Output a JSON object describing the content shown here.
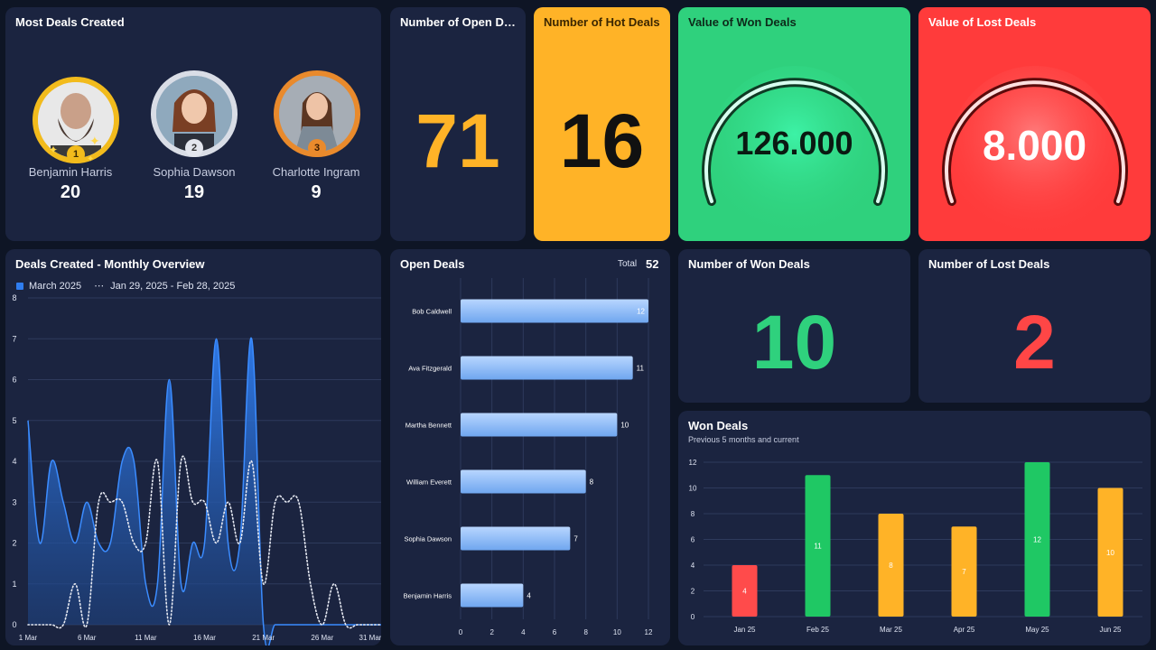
{
  "most_deals": {
    "title": "Most Deals Created",
    "people": [
      {
        "rank": "1",
        "name": "Benjamin Harris",
        "count": "20",
        "ring": "#f2bb1c"
      },
      {
        "rank": "2",
        "name": "Sophia Dawson",
        "count": "19",
        "ring": "#d9dde6"
      },
      {
        "rank": "3",
        "name": "Charlotte Ingram",
        "count": "9",
        "ring": "#e98a2c"
      }
    ]
  },
  "open_deals_kpi": {
    "title": "Number of Open Deals",
    "value": "71",
    "color": "#ffb327"
  },
  "hot_deals_kpi": {
    "title": "Number of Hot Deals",
    "value": "16",
    "bg": "#ffb327"
  },
  "won_value_kpi": {
    "title": "Value of Won Deals",
    "value": "126.000",
    "bg": "#2fd17d"
  },
  "lost_value_kpi": {
    "title": "Value of Lost Deals",
    "value": "8.000",
    "bg": "#ff3b3b"
  },
  "won_count_kpi": {
    "title": "Number of Won Deals",
    "value": "10",
    "color": "#2fd17d"
  },
  "lost_count_kpi": {
    "title": "Number of Lost Deals",
    "value": "2",
    "color": "#ff4646"
  },
  "monthly": {
    "title": "Deals Created - Monthly Overview",
    "legend_current": "March 2025",
    "legend_previous": "Jan 29, 2025 - Feb 28, 2025"
  },
  "open_deals_chart": {
    "title": "Open Deals",
    "total_label": "Total",
    "total_value": "52"
  },
  "won_deals_chart": {
    "title": "Won Deals",
    "subtitle": "Previous 5 months and current"
  },
  "chart_data": [
    {
      "type": "area",
      "title": "Deals Created - Monthly Overview",
      "x_ticks": [
        "1 Mar",
        "6 Mar",
        "11 Mar",
        "16 Mar",
        "21 Mar",
        "26 Mar",
        "31 Mar"
      ],
      "ylim": [
        0,
        8
      ],
      "y_ticks": [
        0,
        1,
        2,
        3,
        4,
        5,
        6,
        7,
        8
      ],
      "grid": true,
      "legend": "top-left",
      "series": [
        {
          "name": "March 2025",
          "style": "area",
          "color": "#2f7df0",
          "values": [
            5,
            2,
            4,
            3,
            2,
            3,
            2,
            2,
            4,
            4,
            1,
            1,
            6,
            1,
            2,
            2,
            7,
            2,
            2,
            7,
            0,
            0,
            0,
            0,
            0,
            0,
            0,
            0,
            0,
            0,
            0
          ]
        },
        {
          "name": "Jan 29, 2025 - Feb 28, 2025",
          "style": "dotted",
          "color": "#e6e9f2",
          "values": [
            0,
            0,
            0,
            0,
            1,
            0,
            3,
            3,
            3,
            2,
            2,
            4,
            0,
            4,
            3,
            3,
            2,
            3,
            2,
            4,
            1,
            3,
            3,
            3,
            1,
            0,
            1,
            0,
            0,
            0,
            0
          ]
        }
      ]
    },
    {
      "type": "bar",
      "orientation": "horizontal",
      "title": "Open Deals",
      "categories": [
        "Bob Caldwell",
        "Ava Fitzgerald",
        "Martha Bennett",
        "William Everett",
        "Sophia Dawson",
        "Benjamin Harris"
      ],
      "values": [
        12,
        11,
        10,
        8,
        7,
        4
      ],
      "xlim": [
        0,
        12
      ],
      "x_ticks": [
        0,
        2,
        4,
        6,
        8,
        10,
        12
      ],
      "grid": true
    },
    {
      "type": "bar",
      "title": "Won Deals",
      "categories": [
        "Jan 25",
        "Feb 25",
        "Mar 25",
        "Apr 25",
        "May 25",
        "Jun 25"
      ],
      "values": [
        4,
        11,
        8,
        7,
        12,
        10
      ],
      "colors": [
        "#ff4b4b",
        "#1fc864",
        "#ffb327",
        "#ffb327",
        "#1fc864",
        "#ffb327"
      ],
      "ylim": [
        0,
        12
      ],
      "y_ticks": [
        0,
        2,
        4,
        6,
        8,
        10,
        12
      ],
      "grid": true
    }
  ]
}
